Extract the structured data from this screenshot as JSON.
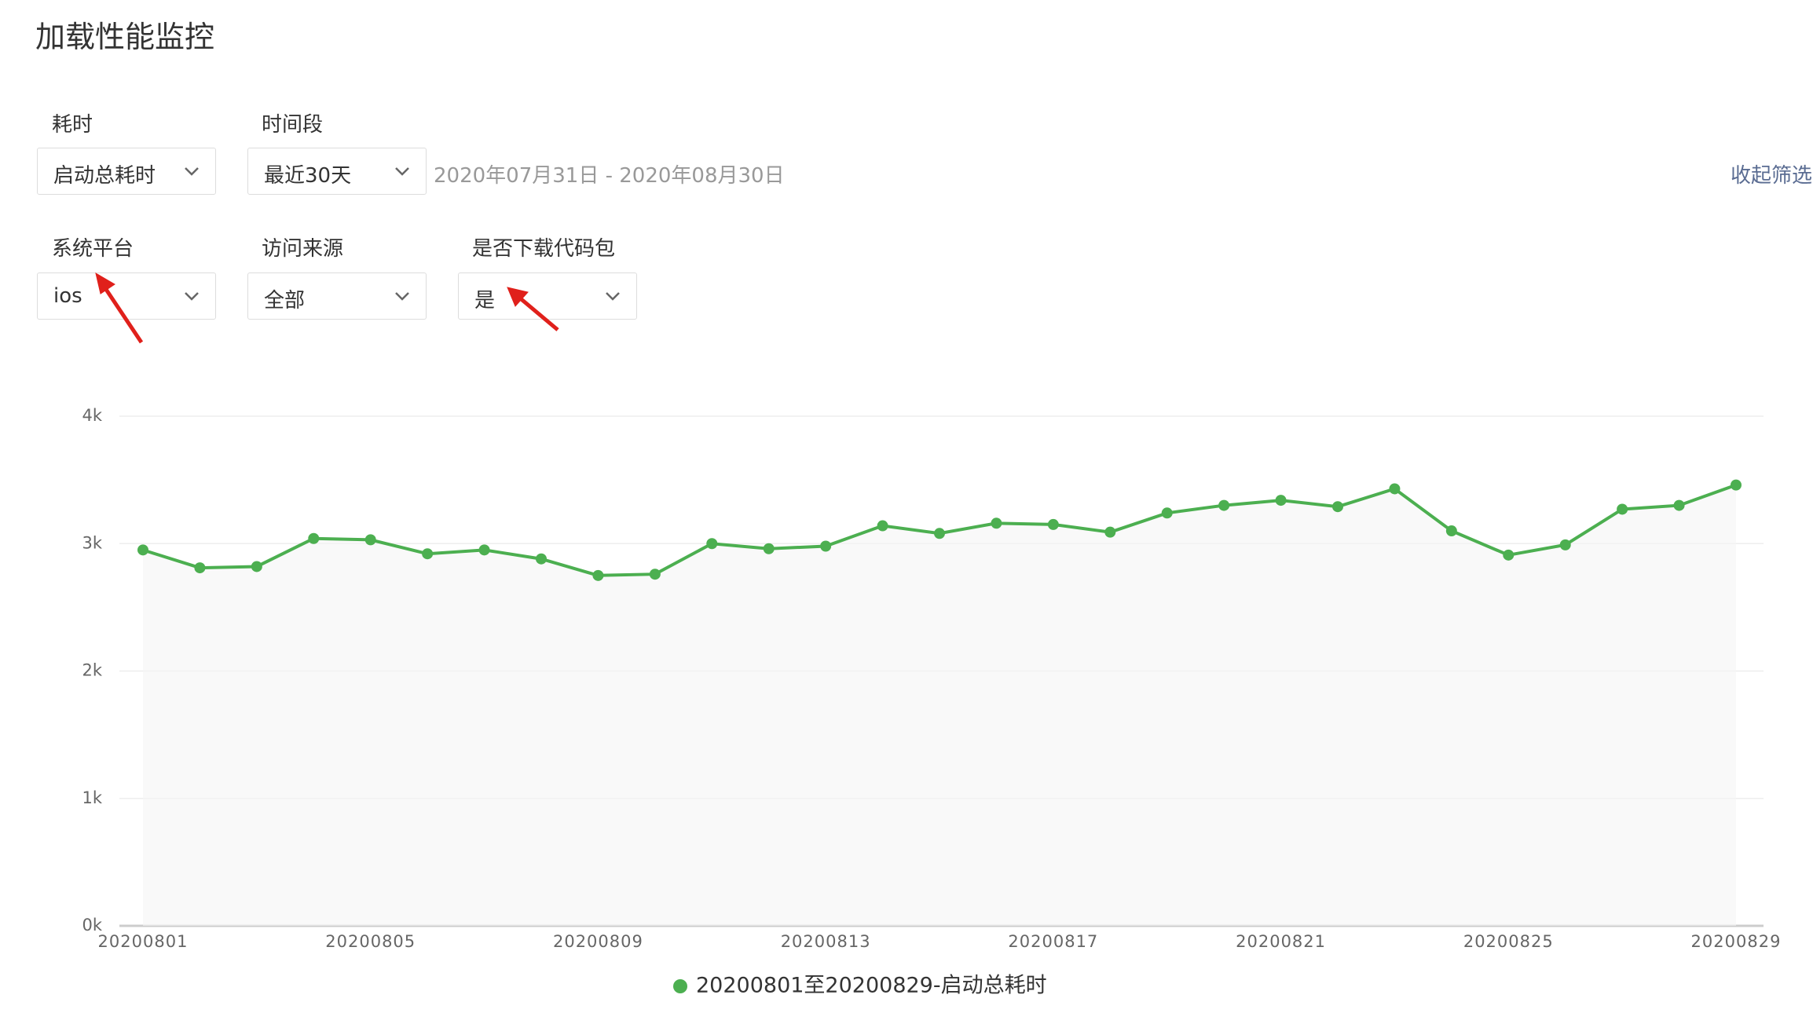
{
  "header": {
    "title": "加载性能监控"
  },
  "filters": [
    {
      "label": "耗时",
      "value": "启动总耗时"
    },
    {
      "label": "时间段",
      "value": "最近30天"
    },
    {
      "label": "系统平台",
      "value": "ios"
    },
    {
      "label": "访问来源",
      "value": "全部"
    },
    {
      "label": "是否下载代码包",
      "value": "是"
    }
  ],
  "date_range": "2020年07月31日 - 2020年08月30日",
  "collapse": "收起筛选",
  "chart_data": {
    "type": "line",
    "categories": [
      "20200801",
      null,
      null,
      null,
      "20200805",
      null,
      null,
      null,
      "20200809",
      null,
      null,
      null,
      "20200813",
      null,
      null,
      null,
      "20200817",
      null,
      null,
      null,
      "20200821",
      null,
      null,
      null,
      "20200825",
      null,
      null,
      null,
      "20200829"
    ],
    "series": [
      {
        "name": "20200801至20200829-启动总耗时",
        "color": "#4caf50",
        "values": [
          2950,
          2810,
          2820,
          3040,
          3030,
          2920,
          2950,
          2880,
          2750,
          2760,
          3000,
          2960,
          2980,
          3140,
          3080,
          3160,
          3150,
          3090,
          3240,
          3300,
          3340,
          3290,
          3430,
          3100,
          2910,
          2990,
          3270,
          3300,
          3460
        ]
      }
    ],
    "ylim": [
      0,
      4000
    ],
    "yticks": [
      {
        "value": 0,
        "label": "0k"
      },
      {
        "value": 1000,
        "label": "1k"
      },
      {
        "value": 2000,
        "label": "2k"
      },
      {
        "value": 3000,
        "label": "3k"
      },
      {
        "value": 4000,
        "label": "4k"
      }
    ],
    "grid": true
  }
}
